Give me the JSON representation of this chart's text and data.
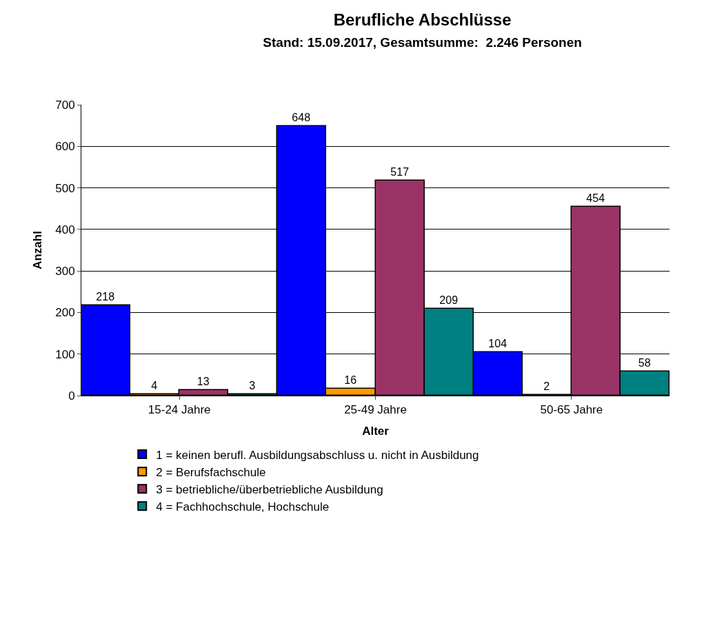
{
  "chart_data": {
    "type": "bar",
    "title": "Berufliche Abschlüsse",
    "subtitle": "Stand: 15.09.2017, Gesamtsumme:  2.246 Personen",
    "xlabel": "Alter",
    "ylabel": "Anzahl",
    "categories": [
      "15-24 Jahre",
      "25-49 Jahre",
      "50-65 Jahre"
    ],
    "series": [
      {
        "name": "1 = keinen berufl. Ausbildungsabschluss u. nicht in Ausbildung",
        "color": "#0000ff",
        "values": [
          218,
          648,
          104
        ]
      },
      {
        "name": "2 = Berufsfachschule",
        "color": "#ff9900",
        "values": [
          4,
          16,
          2
        ]
      },
      {
        "name": "3 = betriebliche/überbetriebliche Ausbildung",
        "color": "#993366",
        "values": [
          13,
          517,
          454
        ]
      },
      {
        "name": "4 = Fachhochschule, Hochschule",
        "color": "#008080",
        "values": [
          3,
          209,
          58
        ]
      }
    ],
    "ylim": [
      0,
      700
    ],
    "yticks": [
      0,
      100,
      200,
      300,
      400,
      500,
      600,
      700
    ],
    "grid": "y",
    "legend": "bottom",
    "data_labels": true
  }
}
